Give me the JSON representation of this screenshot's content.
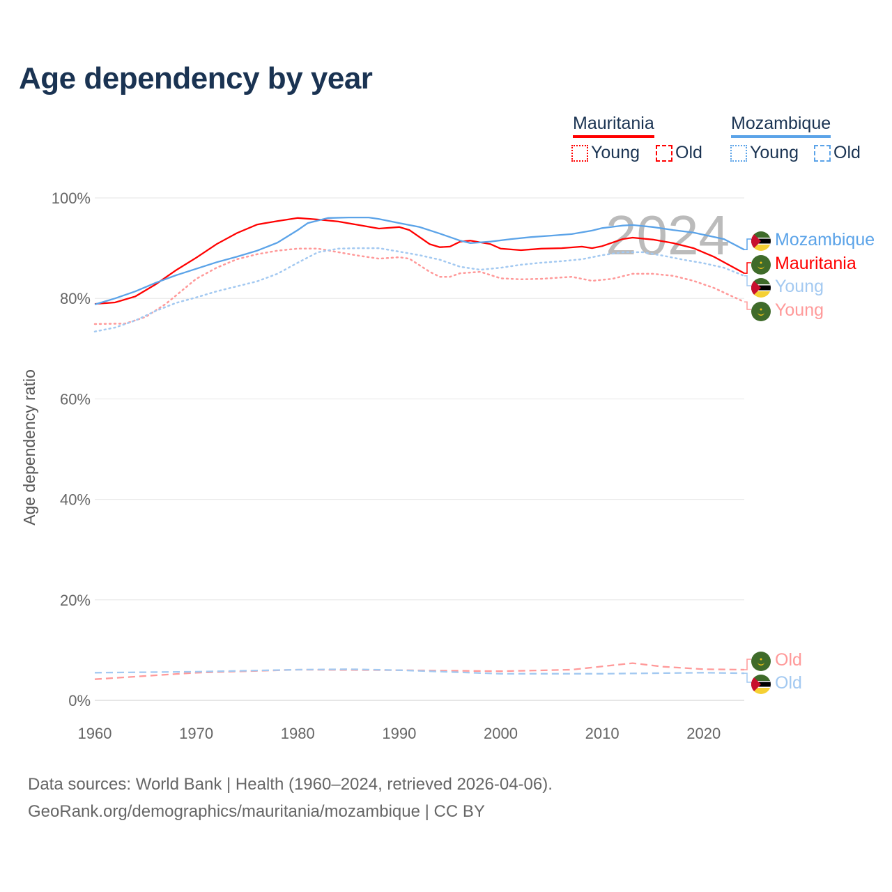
{
  "title": "Age dependency by year",
  "legend": {
    "groups": [
      {
        "name": "Mauritania",
        "color": "#ff0000",
        "items": [
          "Young",
          "Old"
        ]
      },
      {
        "name": "Mozambique",
        "color": "#5ba3e8",
        "items": [
          "Young",
          "Old"
        ]
      }
    ]
  },
  "footer": {
    "line1": "Data sources: World Bank | Health (1960–2024, retrieved 2026-04-06).",
    "line2": "GeoRank.org/demographics/mauritania/mozambique | CC BY"
  },
  "chart_data": {
    "type": "line",
    "title": "Age dependency by year",
    "xlabel": "",
    "ylabel": "Age dependency ratio",
    "xlim": [
      1960,
      2024
    ],
    "ylim": [
      0,
      100
    ],
    "xticks": [
      1960,
      1970,
      1980,
      1990,
      2000,
      2010,
      2020
    ],
    "xtick_labels": [
      "1960",
      "1970",
      "1980",
      "1990",
      "2000",
      "2010",
      "2020"
    ],
    "yticks": [
      0,
      20,
      40,
      60,
      80,
      100
    ],
    "ytick_labels": [
      "0%",
      "20%",
      "40%",
      "60%",
      "80%",
      "100%"
    ],
    "grid": true,
    "year_annotation": "2024",
    "legend_position": "top-right",
    "series": [
      {
        "name": "Mauritania",
        "label": "Mauritania",
        "country": "mauritania",
        "kind": "total",
        "color": "#ff0000",
        "dash": "solid",
        "points": [
          [
            1960,
            78.9
          ],
          [
            1962,
            79.2
          ],
          [
            1964,
            80.4
          ],
          [
            1966,
            82.8
          ],
          [
            1968,
            85.6
          ],
          [
            1970,
            88.1
          ],
          [
            1972,
            90.8
          ],
          [
            1974,
            93.0
          ],
          [
            1976,
            94.7
          ],
          [
            1978,
            95.4
          ],
          [
            1980,
            96.0
          ],
          [
            1982,
            95.7
          ],
          [
            1984,
            95.3
          ],
          [
            1986,
            94.6
          ],
          [
            1988,
            93.9
          ],
          [
            1990,
            94.2
          ],
          [
            1991,
            93.6
          ],
          [
            1993,
            90.8
          ],
          [
            1994,
            90.2
          ],
          [
            1995,
            90.3
          ],
          [
            1996,
            91.3
          ],
          [
            1997,
            91.5
          ],
          [
            1999,
            90.8
          ],
          [
            2000,
            89.9
          ],
          [
            2002,
            89.6
          ],
          [
            2004,
            89.9
          ],
          [
            2006,
            90.0
          ],
          [
            2008,
            90.3
          ],
          [
            2009,
            90.0
          ],
          [
            2010,
            90.4
          ],
          [
            2012,
            91.8
          ],
          [
            2013,
            92.1
          ],
          [
            2015,
            91.7
          ],
          [
            2017,
            91.0
          ],
          [
            2019,
            90.0
          ],
          [
            2021,
            88.3
          ],
          [
            2024,
            85.0
          ]
        ]
      },
      {
        "name": "Mozambique",
        "label": "Mozambique",
        "country": "mozambique",
        "kind": "total",
        "color": "#5ba3e8",
        "dash": "solid",
        "points": [
          [
            1960,
            78.8
          ],
          [
            1962,
            80.0
          ],
          [
            1964,
            81.4
          ],
          [
            1966,
            83.1
          ],
          [
            1968,
            84.6
          ],
          [
            1970,
            85.9
          ],
          [
            1972,
            87.2
          ],
          [
            1974,
            88.3
          ],
          [
            1976,
            89.5
          ],
          [
            1978,
            91.1
          ],
          [
            1980,
            93.6
          ],
          [
            1981,
            95.0
          ],
          [
            1983,
            96.0
          ],
          [
            1985,
            96.1
          ],
          [
            1987,
            96.1
          ],
          [
            1988,
            95.8
          ],
          [
            1990,
            95.0
          ],
          [
            1992,
            94.2
          ],
          [
            1994,
            92.9
          ],
          [
            1996,
            91.5
          ],
          [
            1997,
            91.0
          ],
          [
            1999,
            91.3
          ],
          [
            2001,
            91.8
          ],
          [
            2003,
            92.2
          ],
          [
            2005,
            92.5
          ],
          [
            2007,
            92.8
          ],
          [
            2009,
            93.5
          ],
          [
            2010,
            94.0
          ],
          [
            2012,
            94.5
          ],
          [
            2013,
            94.6
          ],
          [
            2015,
            94.2
          ],
          [
            2017,
            93.6
          ],
          [
            2019,
            93.1
          ],
          [
            2022,
            91.8
          ],
          [
            2024,
            89.7
          ]
        ]
      },
      {
        "name": "Mauritania Young",
        "label": "Young",
        "country": "mauritania",
        "kind": "young",
        "color": "#ff9999",
        "dash": "dotted",
        "points": [
          [
            1960,
            74.9
          ],
          [
            1963,
            75.0
          ],
          [
            1965,
            76.3
          ],
          [
            1967,
            78.9
          ],
          [
            1970,
            83.9
          ],
          [
            1972,
            86.1
          ],
          [
            1974,
            87.8
          ],
          [
            1976,
            88.8
          ],
          [
            1978,
            89.5
          ],
          [
            1980,
            89.9
          ],
          [
            1982,
            89.9
          ],
          [
            1984,
            89.2
          ],
          [
            1986,
            88.5
          ],
          [
            1988,
            87.9
          ],
          [
            1990,
            88.2
          ],
          [
            1991,
            87.9
          ],
          [
            1993,
            85.3
          ],
          [
            1994,
            84.3
          ],
          [
            1995,
            84.3
          ],
          [
            1996,
            85.0
          ],
          [
            1998,
            85.3
          ],
          [
            2000,
            84.0
          ],
          [
            2002,
            83.8
          ],
          [
            2004,
            83.9
          ],
          [
            2007,
            84.3
          ],
          [
            2009,
            83.5
          ],
          [
            2011,
            83.9
          ],
          [
            2013,
            84.9
          ],
          [
            2015,
            84.9
          ],
          [
            2017,
            84.5
          ],
          [
            2019,
            83.5
          ],
          [
            2021,
            82.1
          ],
          [
            2024,
            79.3
          ]
        ]
      },
      {
        "name": "Mozambique Young",
        "label": "Young",
        "country": "mozambique",
        "kind": "young",
        "color": "#a3c9f1",
        "dash": "dotted",
        "points": [
          [
            1960,
            73.4
          ],
          [
            1962,
            74.2
          ],
          [
            1964,
            75.6
          ],
          [
            1966,
            77.5
          ],
          [
            1968,
            79.1
          ],
          [
            1970,
            80.2
          ],
          [
            1972,
            81.4
          ],
          [
            1974,
            82.4
          ],
          [
            1976,
            83.4
          ],
          [
            1978,
            84.9
          ],
          [
            1980,
            87.1
          ],
          [
            1982,
            89.2
          ],
          [
            1984,
            89.9
          ],
          [
            1986,
            90.0
          ],
          [
            1988,
            90.0
          ],
          [
            1990,
            89.3
          ],
          [
            1992,
            88.6
          ],
          [
            1994,
            87.7
          ],
          [
            1996,
            86.3
          ],
          [
            1998,
            85.7
          ],
          [
            2000,
            86.1
          ],
          [
            2002,
            86.7
          ],
          [
            2004,
            87.1
          ],
          [
            2006,
            87.4
          ],
          [
            2008,
            87.8
          ],
          [
            2010,
            88.6
          ],
          [
            2012,
            89.2
          ],
          [
            2014,
            89.2
          ],
          [
            2016,
            88.5
          ],
          [
            2018,
            87.7
          ],
          [
            2020,
            87.0
          ],
          [
            2022,
            86.1
          ],
          [
            2024,
            84.5
          ]
        ]
      },
      {
        "name": "Mauritania Old",
        "label": "Old",
        "country": "mauritania",
        "kind": "old",
        "color": "#ff9999",
        "dash": "dashed",
        "points": [
          [
            1960,
            4.2
          ],
          [
            1970,
            5.5
          ],
          [
            1980,
            6.1
          ],
          [
            1990,
            6.0
          ],
          [
            2000,
            5.8
          ],
          [
            2007,
            6.1
          ],
          [
            2013,
            7.4
          ],
          [
            2016,
            6.7
          ],
          [
            2020,
            6.2
          ],
          [
            2024,
            6.1
          ]
        ]
      },
      {
        "name": "Mozambique Old",
        "label": "Old",
        "country": "mozambique",
        "kind": "old",
        "color": "#a3c9f1",
        "dash": "dashed",
        "points": [
          [
            1960,
            5.5
          ],
          [
            1970,
            5.7
          ],
          [
            1980,
            6.1
          ],
          [
            1985,
            6.2
          ],
          [
            1990,
            6.0
          ],
          [
            2000,
            5.3
          ],
          [
            2010,
            5.3
          ],
          [
            2020,
            5.5
          ],
          [
            2024,
            5.4
          ]
        ]
      }
    ]
  }
}
